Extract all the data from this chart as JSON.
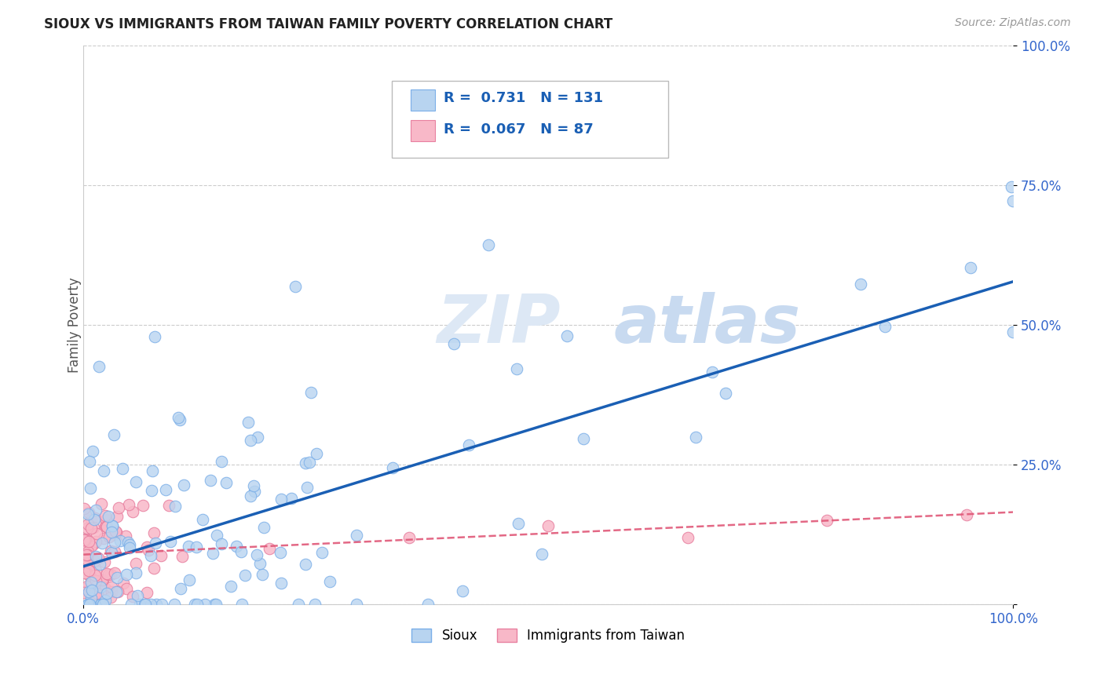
{
  "title": "SIOUX VS IMMIGRANTS FROM TAIWAN FAMILY POVERTY CORRELATION CHART",
  "source_text": "Source: ZipAtlas.com",
  "ylabel": "Family Poverty",
  "series1_name": "Sioux",
  "series1_color": "#b8d4f0",
  "series1_edge_color": "#7aaee8",
  "series1_R": 0.731,
  "series1_N": 131,
  "series1_line_color": "#1a5fb4",
  "series2_name": "Immigrants from Taiwan",
  "series2_color": "#f8b8c8",
  "series2_edge_color": "#e880a0",
  "series2_R": 0.067,
  "series2_N": 87,
  "series2_line_color": "#e05878",
  "background_color": "#ffffff",
  "grid_color": "#cccccc",
  "tick_color": "#3366cc",
  "title_color": "#222222",
  "source_color": "#999999",
  "ylabel_color": "#555555",
  "watermark_zip_color": "#dde8f5",
  "watermark_atlas_color": "#c8daf0"
}
